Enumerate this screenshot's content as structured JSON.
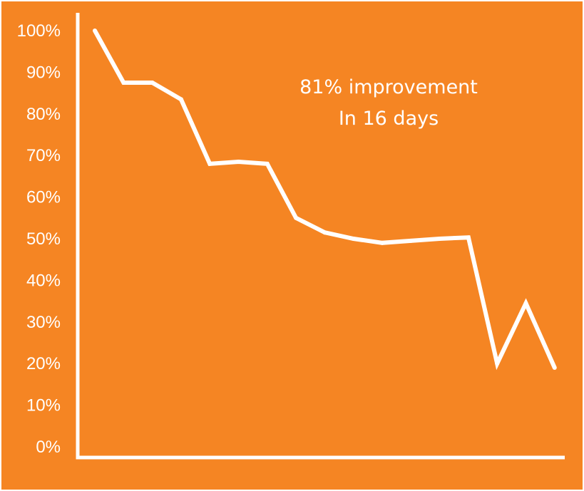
{
  "chart_data": {
    "type": "line",
    "x": [
      1,
      2,
      3,
      4,
      5,
      6,
      7,
      8,
      9,
      10,
      11,
      12,
      13,
      14,
      15,
      16,
      17
    ],
    "series": [
      {
        "values": [
          100,
          87.5,
          87.5,
          83.5,
          68,
          68.5,
          68,
          55,
          51.5,
          50,
          49,
          49.5,
          50,
          50.3,
          20,
          34.5,
          19
        ]
      }
    ],
    "yticks": [
      "100%",
      "90%",
      "80%",
      "70%",
      "60%",
      "50%",
      "40%",
      "30%",
      "20%",
      "10%",
      "0%"
    ],
    "ylim": [
      0,
      100
    ],
    "title": "",
    "xlabel": "",
    "ylabel": "",
    "grid": false,
    "annotations": [
      "81% improvement",
      "In 16 days"
    ],
    "colors": {
      "background": "#f58523",
      "line": "#ffffff",
      "axis": "#ffffff",
      "text": "#ffffff"
    }
  }
}
